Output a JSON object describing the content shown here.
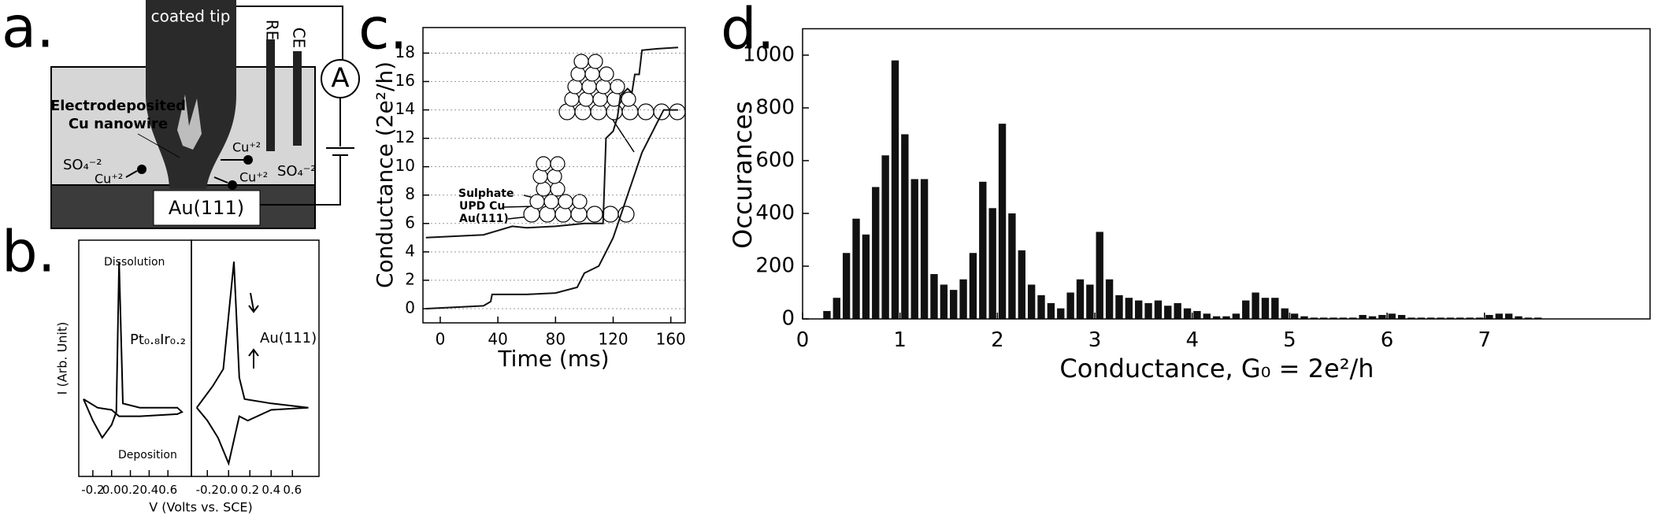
{
  "panel_labels": [
    "a.",
    "b.",
    "c.",
    "d."
  ],
  "panel_a": {
    "tip": "coated tip",
    "electrodes": [
      "RE",
      "CE"
    ],
    "meter": "A",
    "wire": [
      "Electrodeposited",
      "Cu nanowire"
    ],
    "ions": [
      "SO₄⁻²",
      "SO₄⁻²",
      "Cu⁺²",
      "Cu⁺²",
      "Cu⁺²"
    ],
    "substrate": "Au(111)"
  },
  "chart_data": [
    {
      "type": "line",
      "ylabel": "I (Arb. Unit)",
      "annotations": [
        "Dissolution",
        "Deposition",
        "Pt₀.₈Ir₀.₂"
      ],
      "xlim": [
        -0.35,
        0.85
      ],
      "ylim": [
        -1.5,
        4
      ],
      "xticks": [
        -0.2,
        {
          "value": 0,
          "label": "0.0"
        },
        0.2,
        0.4,
        0.6
      ],
      "series": [
        {
          "color": "#000000",
          "x": [
            -0.3,
            -0.2,
            -0.1,
            0,
            0.05,
            0.08,
            0.12,
            0.3,
            0.7,
            0.75,
            0.7,
            0.3,
            0.08,
            0,
            -0.15,
            -0.3
          ],
          "values": [
            0.3,
            -0.2,
            -0.6,
            -0.3,
            0,
            3.5,
            0.2,
            0.1,
            0.1,
            0,
            -0.05,
            -0.1,
            -0.1,
            0.05,
            0.1,
            0.3
          ]
        }
      ]
    },
    {
      "type": "line",
      "xlabel": "V (Volts vs. SCE)",
      "annotations": [
        "Au(111)"
      ],
      "xlim": [
        -0.35,
        0.85
      ],
      "ylim": [
        -1.5,
        4
      ],
      "xticks": [
        -0.2,
        {
          "value": 0,
          "label": "0.0"
        },
        0.2,
        0.4,
        0.6
      ],
      "series": [
        {
          "color": "#000000",
          "x": [
            -0.3,
            -0.15,
            -0.05,
            0.05,
            0.1,
            0.15,
            0.4,
            0.75,
            0.4,
            0.18,
            0.1,
            0,
            -0.1,
            -0.2,
            -0.3
          ],
          "values": [
            0.1,
            0.6,
            1.0,
            3.5,
            0.8,
            0.3,
            0.2,
            0.1,
            0.05,
            -0.2,
            -0.1,
            -1.2,
            -0.6,
            -0.2,
            0.1
          ]
        }
      ]
    },
    {
      "type": "line",
      "xlabel": "Time (ms)",
      "ylabel": "Conductance (2e²/h)",
      "annotations": [
        "Sulphate",
        "UPD Cu",
        "Au(111)"
      ],
      "xlim": [
        -12,
        170
      ],
      "ylim": [
        -1,
        19.8
      ],
      "xticks": [
        0,
        40,
        80,
        120,
        160
      ],
      "yticks": [
        0,
        2,
        4,
        6,
        8,
        10,
        12,
        14,
        16,
        18
      ],
      "grid": true,
      "series": [
        {
          "color": "#111111",
          "x": [
            -10,
            30,
            40,
            50,
            60,
            80,
            100,
            113,
            115,
            120,
            123,
            125,
            130,
            133,
            135,
            138,
            140,
            150,
            165
          ],
          "values": [
            5,
            5.2,
            5.5,
            5.8,
            5.7,
            5.8,
            6,
            6,
            12,
            12.5,
            13.5,
            15,
            15.5,
            15.2,
            16.5,
            16.5,
            18.2,
            18.3,
            18.4
          ]
        },
        {
          "color": "#111111",
          "x": [
            -10,
            30,
            35,
            36,
            60,
            80,
            95,
            100,
            110,
            115,
            120,
            125,
            130,
            135,
            140,
            145,
            150,
            155,
            160,
            165
          ],
          "values": [
            0,
            0.2,
            0.5,
            1,
            1,
            1.1,
            1.5,
            2.5,
            3,
            4,
            5,
            6.5,
            8,
            9.5,
            11,
            12,
            13,
            14,
            14,
            14
          ]
        }
      ]
    },
    {
      "type": "histogram",
      "xlabel": "Conductance, G₀ = 2e²/h",
      "ylabel": "Occurances",
      "color": "#111111",
      "xlim": [
        0,
        8.7
      ],
      "ylim": [
        0,
        1100
      ],
      "xticks": [
        0,
        1,
        2,
        3,
        4,
        5,
        6,
        7
      ],
      "yticks": [
        0,
        200,
        400,
        600,
        800,
        1000
      ],
      "bins": [
        0.2,
        0.3,
        0.4,
        0.5,
        0.6,
        0.7,
        0.8,
        0.9,
        1.0,
        1.1,
        1.2,
        1.3,
        1.4,
        1.5,
        1.6,
        1.7,
        1.8,
        1.9,
        2.0,
        2.1,
        2.2,
        2.3,
        2.4,
        2.5,
        2.6,
        2.7,
        2.8,
        2.9,
        3.0,
        3.1,
        3.2,
        3.3,
        3.4,
        3.5,
        3.6,
        3.7,
        3.8,
        3.9,
        4.0,
        4.1,
        4.2,
        4.3,
        4.4,
        4.5,
        4.6,
        4.7,
        4.8,
        4.9,
        5.0,
        5.1,
        5.2,
        5.3,
        5.4,
        5.5,
        5.6,
        5.7,
        5.8,
        5.9,
        6.0,
        6.1,
        6.2,
        6.3,
        6.4,
        6.5,
        6.6,
        6.7,
        6.8,
        6.9,
        7.0,
        7.1,
        7.2,
        7.3,
        7.4,
        7.5,
        7.6
      ],
      "values": [
        30,
        80,
        250,
        380,
        320,
        500,
        620,
        980,
        700,
        530,
        530,
        170,
        130,
        110,
        150,
        250,
        520,
        420,
        740,
        400,
        260,
        130,
        90,
        60,
        40,
        100,
        150,
        130,
        330,
        150,
        90,
        80,
        70,
        60,
        70,
        50,
        60,
        40,
        30,
        20,
        10,
        10,
        20,
        70,
        100,
        80,
        80,
        40,
        20,
        10,
        5,
        5,
        5,
        5,
        5,
        15,
        10,
        15,
        20,
        15,
        5,
        5,
        5,
        5,
        5,
        5,
        5,
        5,
        15,
        20,
        20,
        10,
        5,
        5
      ]
    }
  ]
}
